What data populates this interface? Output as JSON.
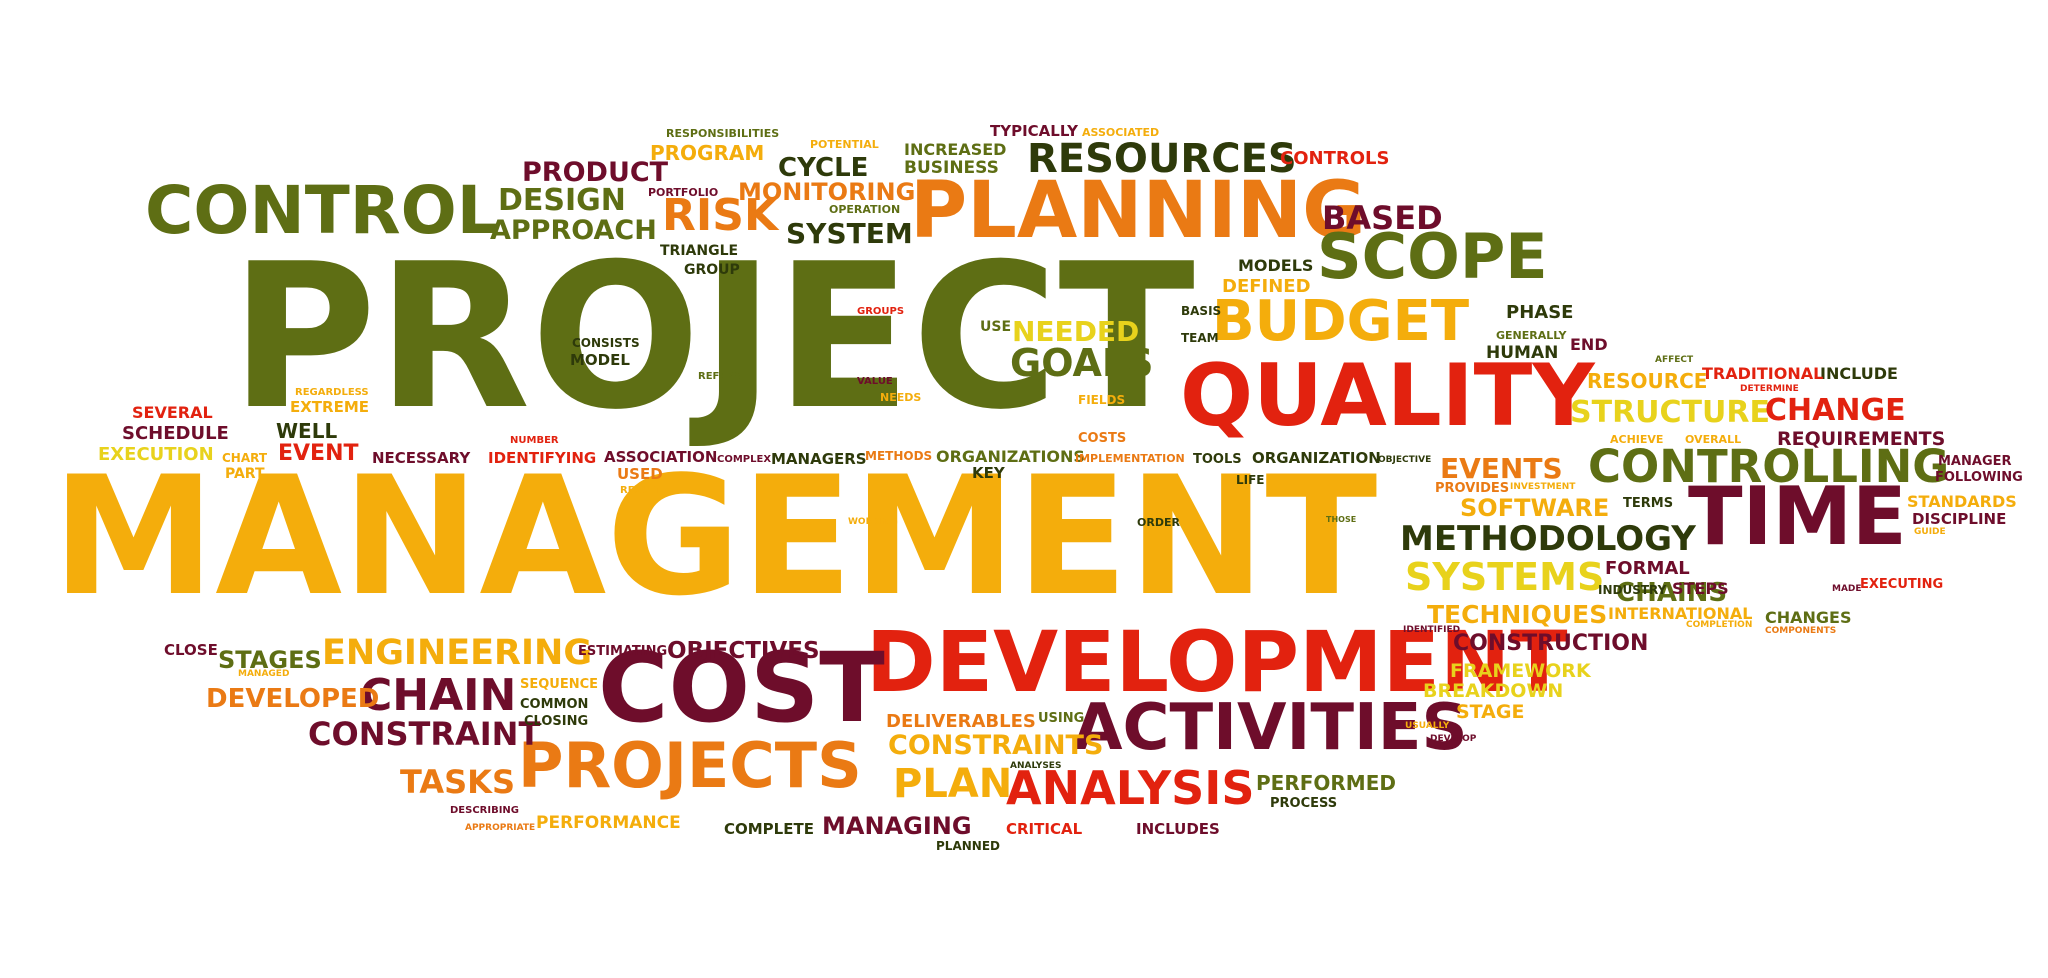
{
  "palette": {
    "olive": "#5e6e14",
    "amber": "#f4ad0c",
    "orange": "#ea7a14",
    "red": "#e2220f",
    "maroon": "#6e0d2b",
    "yellow": "#e8d21c",
    "darkolive": "#2e3a0a",
    "darkred": "#7d0e1e"
  },
  "words": [
    {
      "text": "PROJECT",
      "color": "olive"
    },
    {
      "text": "MANAGEMENT",
      "color": "amber"
    },
    {
      "text": "DEVELOPMENT",
      "color": "red"
    },
    {
      "text": "COST",
      "color": "maroon"
    },
    {
      "text": "PLANNING",
      "color": "orange"
    },
    {
      "text": "QUALITY",
      "color": "red"
    },
    {
      "text": "CONTROL",
      "color": "olive"
    },
    {
      "text": "TIME",
      "color": "maroon"
    },
    {
      "text": "ACTIVITIES",
      "color": "maroon"
    },
    {
      "text": "PROJECTS",
      "color": "orange"
    },
    {
      "text": "SCOPE",
      "color": "olive"
    },
    {
      "text": "BUDGET",
      "color": "amber"
    },
    {
      "text": "CONTROLLING",
      "color": "olive"
    },
    {
      "text": "RESOURCES",
      "color": "darkolive"
    },
    {
      "text": "ANALYSIS",
      "color": "red"
    },
    {
      "text": "METHODOLOGY",
      "color": "darkolive"
    },
    {
      "text": "ENGINEERING",
      "color": "amber"
    },
    {
      "text": "CHAIN",
      "color": "maroon"
    },
    {
      "text": "GOALS",
      "color": "olive"
    },
    {
      "text": "RISK",
      "color": "orange"
    },
    {
      "text": "SYSTEMS",
      "color": "yellow"
    },
    {
      "text": "CONSTRAINT",
      "color": "maroon"
    },
    {
      "text": "STRUCTURE",
      "color": "yellow"
    },
    {
      "text": "PLAN",
      "color": "amber"
    },
    {
      "text": "CHANGE",
      "color": "red"
    },
    {
      "text": "SYSTEM",
      "color": "darkolive"
    },
    {
      "text": "DESIGN",
      "color": "olive"
    },
    {
      "text": "APPROACH",
      "color": "olive"
    },
    {
      "text": "PRODUCT",
      "color": "maroon"
    },
    {
      "text": "CYCLE",
      "color": "darkolive"
    },
    {
      "text": "MONITORING",
      "color": "orange"
    },
    {
      "text": "BASED",
      "color": "maroon"
    },
    {
      "text": "CONSTRAINTS",
      "color": "amber"
    },
    {
      "text": "TASKS",
      "color": "orange"
    },
    {
      "text": "TECHNIQUES",
      "color": "amber"
    },
    {
      "text": "SOFTWARE",
      "color": "amber"
    },
    {
      "text": "EVENTS",
      "color": "orange"
    },
    {
      "text": "NEEDED",
      "color": "yellow"
    },
    {
      "text": "DEVELOPED",
      "color": "orange"
    },
    {
      "text": "OBJECTIVES",
      "color": "maroon"
    },
    {
      "text": "STAGES",
      "color": "olive"
    },
    {
      "text": "CONSTRUCTION",
      "color": "maroon"
    },
    {
      "text": "CHAINS",
      "color": "olive"
    },
    {
      "text": "PERFORMED",
      "color": "olive"
    },
    {
      "text": "MANAGING",
      "color": "maroon"
    },
    {
      "text": "PERFORMANCE",
      "color": "amber"
    },
    {
      "text": "DELIVERABLES",
      "color": "orange"
    },
    {
      "text": "BREAKDOWN",
      "color": "yellow"
    },
    {
      "text": "FRAMEWORK",
      "color": "yellow"
    },
    {
      "text": "STAGE",
      "color": "amber"
    },
    {
      "text": "RESOURCE",
      "color": "amber"
    },
    {
      "text": "REQUIREMENTS",
      "color": "maroon"
    },
    {
      "text": "INTERNATIONAL",
      "color": "amber"
    },
    {
      "text": "CHANGES",
      "color": "olive"
    },
    {
      "text": "FORMAL",
      "color": "maroon"
    },
    {
      "text": "STEPS",
      "color": "maroon"
    },
    {
      "text": "INCLUDE",
      "color": "darkolive"
    },
    {
      "text": "TRADITIONAL",
      "color": "red"
    },
    {
      "text": "STANDARDS",
      "color": "amber"
    },
    {
      "text": "DISCIPLINE",
      "color": "maroon"
    },
    {
      "text": "MANAGER",
      "color": "maroon"
    },
    {
      "text": "FOLLOWING",
      "color": "maroon"
    },
    {
      "text": "EXECUTING",
      "color": "red"
    },
    {
      "text": "HUMAN",
      "color": "darkolive"
    },
    {
      "text": "PHASE",
      "color": "darkolive"
    },
    {
      "text": "END",
      "color": "maroon"
    },
    {
      "text": "MODELS",
      "color": "darkolive"
    },
    {
      "text": "DEFINED",
      "color": "amber"
    },
    {
      "text": "CONTROLS",
      "color": "red"
    },
    {
      "text": "TYPICALLY",
      "color": "maroon"
    },
    {
      "text": "ASSOCIATED",
      "color": "amber"
    },
    {
      "text": "INCREASED",
      "color": "olive"
    },
    {
      "text": "BUSINESS",
      "color": "olive"
    },
    {
      "text": "POTENTIAL",
      "color": "amber"
    },
    {
      "text": "PROGRAM",
      "color": "amber"
    },
    {
      "text": "RESPONSIBILITIES",
      "color": "olive"
    },
    {
      "text": "PORTFOLIO",
      "color": "maroon"
    },
    {
      "text": "OPERATION",
      "color": "olive"
    },
    {
      "text": "TRIANGLE",
      "color": "darkolive"
    },
    {
      "text": "GROUP",
      "color": "darkolive"
    },
    {
      "text": "GROUPS",
      "color": "red"
    },
    {
      "text": "USE",
      "color": "olive"
    },
    {
      "text": "BASIS",
      "color": "darkolive"
    },
    {
      "text": "TEAM",
      "color": "darkolive"
    },
    {
      "text": "GENERALLY",
      "color": "olive"
    },
    {
      "text": "CONSISTS",
      "color": "darkolive"
    },
    {
      "text": "MODEL",
      "color": "darkolive"
    },
    {
      "text": "REFERS",
      "color": "olive"
    },
    {
      "text": "VALUE",
      "color": "maroon"
    },
    {
      "text": "NEEDS",
      "color": "amber"
    },
    {
      "text": "FIELDS",
      "color": "amber"
    },
    {
      "text": "COSTS",
      "color": "orange"
    },
    {
      "text": "SEVERAL",
      "color": "red"
    },
    {
      "text": "SCHEDULE",
      "color": "maroon"
    },
    {
      "text": "REGARDLESS",
      "color": "amber"
    },
    {
      "text": "EXTREME",
      "color": "amber"
    },
    {
      "text": "WELL",
      "color": "darkolive"
    },
    {
      "text": "EVENT",
      "color": "red"
    },
    {
      "text": "EXECUTION",
      "color": "yellow"
    },
    {
      "text": "CHART",
      "color": "amber"
    },
    {
      "text": "PART",
      "color": "amber"
    },
    {
      "text": "NUMBER",
      "color": "red"
    },
    {
      "text": "NECESSARY",
      "color": "maroon"
    },
    {
      "text": "IDENTIFYING",
      "color": "red"
    },
    {
      "text": "ASSOCIATION",
      "color": "maroon"
    },
    {
      "text": "COMPLEX",
      "color": "maroon"
    },
    {
      "text": "USED",
      "color": "orange"
    },
    {
      "text": "RESULT",
      "color": "amber"
    },
    {
      "text": "MANAGERS",
      "color": "darkolive"
    },
    {
      "text": "METHODS",
      "color": "orange"
    },
    {
      "text": "ORGANIZATIONS",
      "color": "olive"
    },
    {
      "text": "KEY",
      "color": "darkolive"
    },
    {
      "text": "IMPLEMENTATION",
      "color": "orange"
    },
    {
      "text": "TOOLS",
      "color": "darkolive"
    },
    {
      "text": "ORGANIZATION",
      "color": "darkolive"
    },
    {
      "text": "OBJECTIVE",
      "color": "darkolive"
    },
    {
      "text": "LIFE",
      "color": "darkolive"
    },
    {
      "text": "WORKING",
      "color": "amber"
    },
    {
      "text": "ORDER",
      "color": "darkolive"
    },
    {
      "text": "THOSE",
      "color": "olive"
    },
    {
      "text": "PROVIDES",
      "color": "orange"
    },
    {
      "text": "INVESTMENT",
      "color": "amber"
    },
    {
      "text": "TERMS",
      "color": "darkolive"
    },
    {
      "text": "ACHIEVE",
      "color": "amber"
    },
    {
      "text": "OVERALL",
      "color": "amber"
    },
    {
      "text": "AFFECT",
      "color": "olive"
    },
    {
      "text": "DETERMINE",
      "color": "red"
    },
    {
      "text": "GUIDE",
      "color": "amber"
    },
    {
      "text": "INDUSTRY",
      "color": "darkolive"
    },
    {
      "text": "MADE",
      "color": "maroon"
    },
    {
      "text": "COMPLETION",
      "color": "amber"
    },
    {
      "text": "COMPONENTS",
      "color": "orange"
    },
    {
      "text": "IDENTIFIED",
      "color": "maroon"
    },
    {
      "text": "CLOSE",
      "color": "maroon"
    },
    {
      "text": "MANAGED",
      "color": "amber"
    },
    {
      "text": "SEQUENCE",
      "color": "amber"
    },
    {
      "text": "COMMON",
      "color": "darkolive"
    },
    {
      "text": "CLOSING",
      "color": "darkolive"
    },
    {
      "text": "ESTIMATING",
      "color": "maroon"
    },
    {
      "text": "USING",
      "color": "olive"
    },
    {
      "text": "ANALYSES",
      "color": "darkolive"
    },
    {
      "text": "USUALLY",
      "color": "amber"
    },
    {
      "text": "DEVELOP",
      "color": "maroon"
    },
    {
      "text": "DESCRIBING",
      "color": "maroon"
    },
    {
      "text": "APPROPRIATE",
      "color": "orange"
    },
    {
      "text": "COMPLETE",
      "color": "darkolive"
    },
    {
      "text": "PLANNED",
      "color": "darkolive"
    },
    {
      "text": "CRITICAL",
      "color": "red"
    },
    {
      "text": "INCLUDES",
      "color": "maroon"
    },
    {
      "text": "PROCESS",
      "color": "darkolive"
    }
  ]
}
